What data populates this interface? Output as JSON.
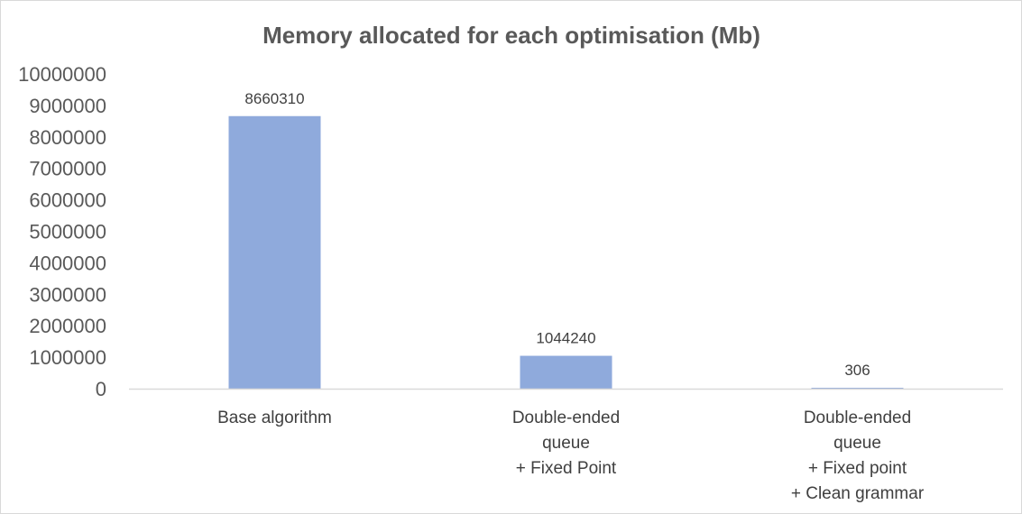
{
  "chart_data": {
    "type": "bar",
    "title": "Memory allocated for each optimisation (Mb)",
    "categories": [
      [
        "Base algorithm"
      ],
      [
        "Double-ended",
        "queue",
        "+ Fixed Point"
      ],
      [
        "Double-ended",
        "queue",
        "+ Fixed point",
        "+ Clean grammar"
      ]
    ],
    "values": [
      8660310,
      1044240,
      306
    ],
    "data_labels": [
      "8660310",
      "1044240",
      "306"
    ],
    "ylim": [
      0,
      10000000
    ],
    "yticks": [
      "0",
      "1000000",
      "2000000",
      "3000000",
      "4000000",
      "5000000",
      "6000000",
      "7000000",
      "8000000",
      "9000000",
      "10000000"
    ],
    "xlabel": "",
    "ylabel": "",
    "grid": false,
    "legend": "none",
    "bar_color": "#8faadc",
    "axis_color": "#d9d9d9"
  }
}
